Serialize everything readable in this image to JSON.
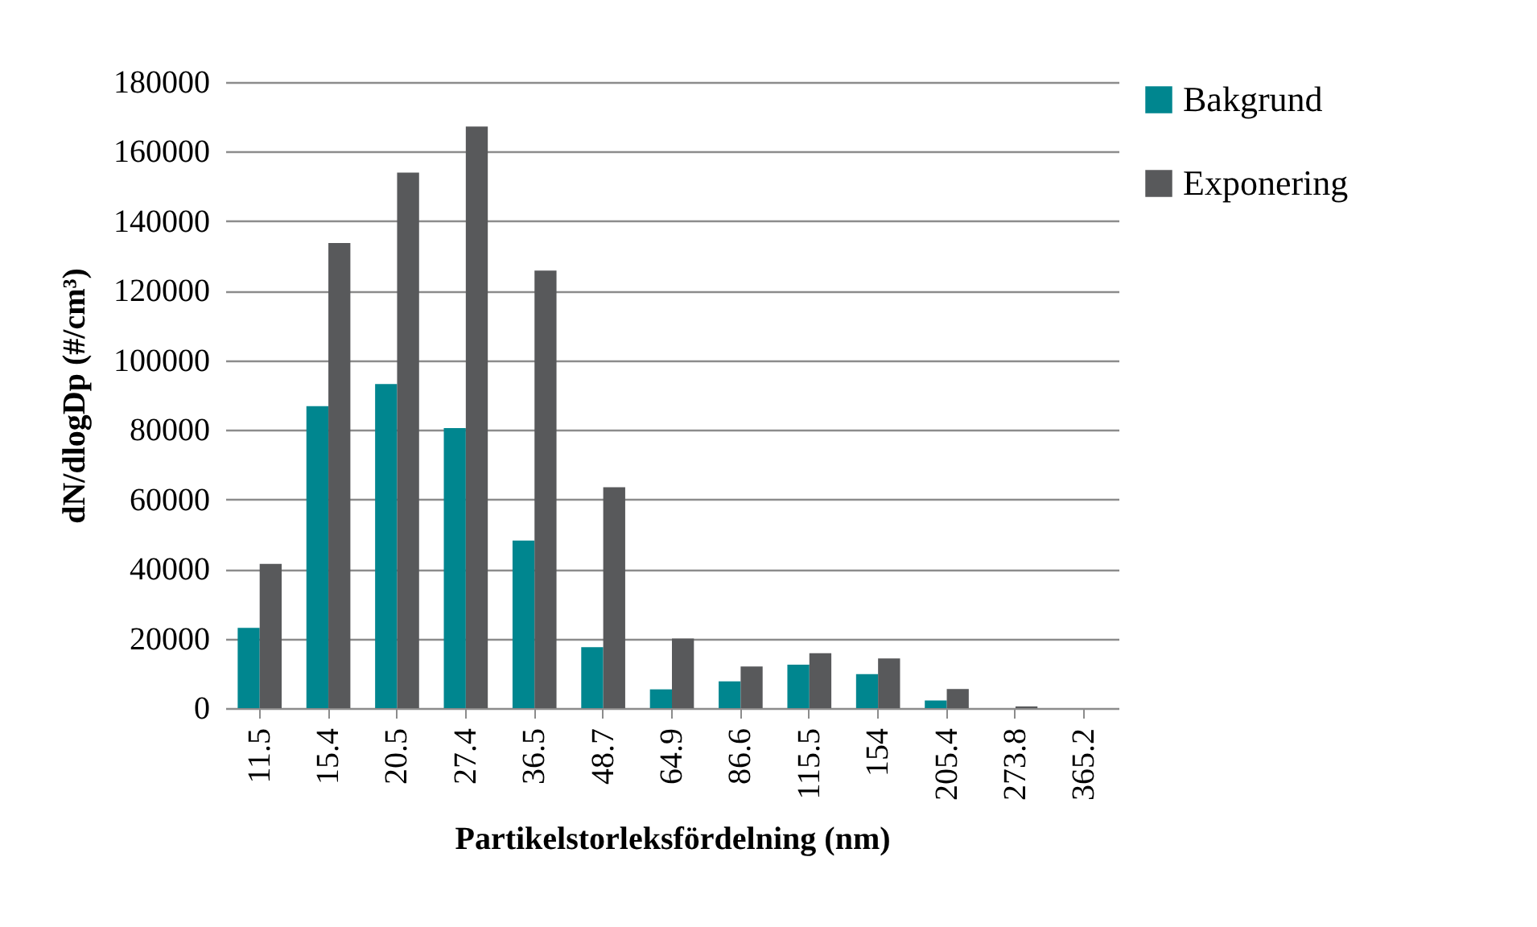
{
  "chart_data": {
    "type": "bar",
    "xlabel": "Partikelstorleksfördelning (nm)",
    "ylabel": "dN/dlogDp (#/cm³)",
    "categories": [
      "11.5",
      "15.4",
      "20.5",
      "27.4",
      "36.5",
      "48.7",
      "64.9",
      "86.6",
      "115.5",
      "154",
      "205.4",
      "273.8",
      "365.2"
    ],
    "series": [
      {
        "name": "Bakgrund",
        "color": "#00868f",
        "values": [
          23100,
          86800,
          93200,
          80500,
          48200,
          17500,
          5400,
          7700,
          12500,
          9800,
          2200,
          0,
          0
        ]
      },
      {
        "name": "Exponering",
        "color": "#58595b",
        "values": [
          41500,
          133700,
          154000,
          167200,
          125800,
          63500,
          20000,
          12000,
          15800,
          14300,
          5500,
          500,
          null
        ]
      }
    ],
    "ylim": [
      0,
      180000
    ],
    "yticks": [
      0,
      20000,
      40000,
      60000,
      80000,
      100000,
      120000,
      140000,
      160000,
      180000
    ],
    "grid": "y",
    "legend": "right"
  }
}
